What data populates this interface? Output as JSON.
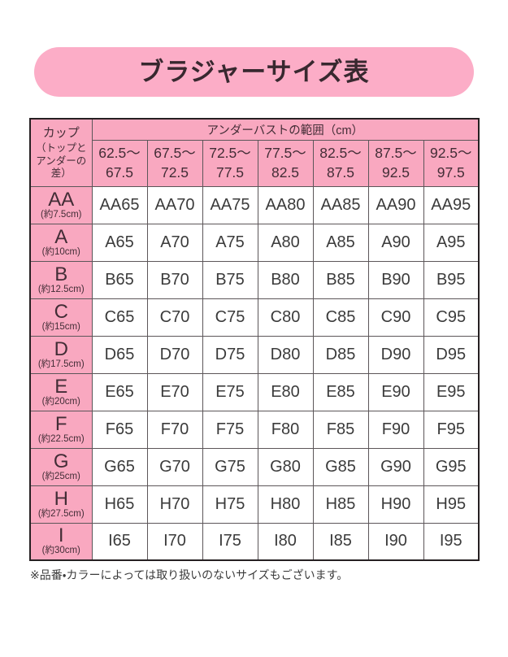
{
  "banner": {
    "title": "ブラジャーサイズ表"
  },
  "footnote": "※品番・カラーによっては取り扱いのないサイズもございます。",
  "colors": {
    "banner_pink": "#fcadc7",
    "header_pink": "#f9a8c0",
    "cell_white": "#ffffff",
    "title_text": "#38282f",
    "table_text": "#3b3b3b",
    "outer_border": "#262022",
    "inner_border": "#5c5659"
  },
  "chart_data": {
    "type": "table",
    "title": "ブラジャーサイズ表",
    "corner_label": "カップ",
    "corner_sublabel": "（トップとアンダーの差）",
    "underbust_header": "アンダーバストの範囲（cm）",
    "band_columns": [
      {
        "top": "62.5～",
        "bottom": "67.5"
      },
      {
        "top": "67.5～",
        "bottom": "72.5"
      },
      {
        "top": "72.5～",
        "bottom": "77.5"
      },
      {
        "top": "77.5～",
        "bottom": "82.5"
      },
      {
        "top": "82.5～",
        "bottom": "87.5"
      },
      {
        "top": "87.5～",
        "bottom": "92.5"
      },
      {
        "top": "92.5～",
        "bottom": "97.5"
      }
    ],
    "rows": [
      {
        "cup": "AA",
        "diff": "(約7.5cm)",
        "sizes": [
          "AA65",
          "AA70",
          "AA75",
          "AA80",
          "AA85",
          "AA90",
          "AA95"
        ]
      },
      {
        "cup": "A",
        "diff": "(約10cm)",
        "sizes": [
          "A65",
          "A70",
          "A75",
          "A80",
          "A85",
          "A90",
          "A95"
        ]
      },
      {
        "cup": "B",
        "diff": "(約12.5cm)",
        "sizes": [
          "B65",
          "B70",
          "B75",
          "B80",
          "B85",
          "B90",
          "B95"
        ]
      },
      {
        "cup": "C",
        "diff": "(約15cm)",
        "sizes": [
          "C65",
          "C70",
          "C75",
          "C80",
          "C85",
          "C90",
          "C95"
        ]
      },
      {
        "cup": "D",
        "diff": "(約17.5cm)",
        "sizes": [
          "D65",
          "D70",
          "D75",
          "D80",
          "D85",
          "D90",
          "D95"
        ]
      },
      {
        "cup": "E",
        "diff": "(約20cm)",
        "sizes": [
          "E65",
          "E70",
          "E75",
          "E80",
          "E85",
          "E90",
          "E95"
        ]
      },
      {
        "cup": "F",
        "diff": "(約22.5cm)",
        "sizes": [
          "F65",
          "F70",
          "F75",
          "F80",
          "F85",
          "F90",
          "F95"
        ]
      },
      {
        "cup": "G",
        "diff": "(約25cm)",
        "sizes": [
          "G65",
          "G70",
          "G75",
          "G80",
          "G85",
          "G90",
          "G95"
        ]
      },
      {
        "cup": "H",
        "diff": "(約27.5cm)",
        "sizes": [
          "H65",
          "H70",
          "H75",
          "H80",
          "H85",
          "H90",
          "H95"
        ]
      },
      {
        "cup": "I",
        "diff": "(約30cm)",
        "sizes": [
          "I65",
          "I70",
          "I75",
          "I80",
          "I85",
          "I90",
          "I95"
        ]
      }
    ]
  }
}
